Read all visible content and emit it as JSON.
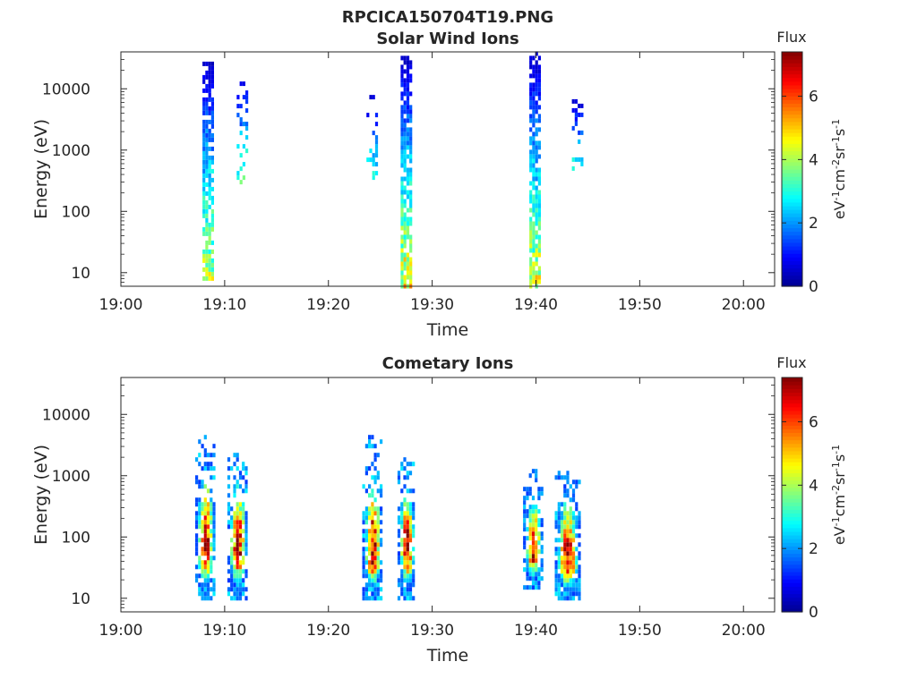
{
  "figure": {
    "title": "RPCICA150704T19.PNG"
  },
  "colormap": [
    "#00008f",
    "#0000ff",
    "#0080ff",
    "#00ffff",
    "#80ff80",
    "#ffff00",
    "#ff8000",
    "#ff0000",
    "#800000"
  ],
  "chart_data": [
    {
      "type": "heatmap",
      "title": "Solar Wind Ions",
      "xlabel": "Time",
      "ylabel": "Energy (eV)",
      "x_axis": {
        "range": [
          "19:00",
          "20:03"
        ],
        "ticks": [
          "19:00",
          "19:10",
          "19:20",
          "19:30",
          "19:40",
          "19:50",
          "20:00"
        ]
      },
      "y_axis": {
        "scale": "log",
        "range": [
          6,
          40000
        ],
        "tick_values": [
          10,
          100,
          1000,
          10000
        ],
        "ticks": [
          "10",
          "100",
          "1000",
          "10000"
        ]
      },
      "colorbar": {
        "title": "Flux",
        "label": "eV-1cm-2sr-1s-1",
        "range": [
          0,
          7.4
        ],
        "tick_values": [
          0,
          2,
          4,
          6
        ],
        "ticks": [
          "0",
          "2",
          "4",
          "6"
        ]
      },
      "grid": false,
      "bursts": [
        {
          "time": "19:08.5",
          "energy_min": 8,
          "energy_max": 30000,
          "density": 0.78,
          "peak": 3.9
        },
        {
          "time": "19:11.8",
          "energy_min": 300,
          "energy_max": 16000,
          "density": 0.3,
          "peak": 3.1
        },
        {
          "time": "19:24.3",
          "energy_min": 300,
          "energy_max": 8000,
          "density": 0.22,
          "peak": 2.8
        },
        {
          "time": "19:27.6",
          "energy_min": 6,
          "energy_max": 35000,
          "density": 0.8,
          "peak": 4.3
        },
        {
          "time": "19:40.0",
          "energy_min": 6,
          "energy_max": 38000,
          "density": 0.8,
          "peak": 4.1
        },
        {
          "time": "19:44.1",
          "energy_min": 500,
          "energy_max": 6500,
          "density": 0.3,
          "peak": 2.8
        }
      ]
    },
    {
      "type": "heatmap",
      "title": "Cometary Ions",
      "xlabel": "Time",
      "ylabel": "Energy (eV)",
      "x_axis": {
        "range": [
          "19:00",
          "20:03"
        ],
        "ticks": [
          "19:00",
          "19:10",
          "19:20",
          "19:30",
          "19:40",
          "19:50",
          "20:00"
        ]
      },
      "y_axis": {
        "scale": "log",
        "range": [
          6,
          40000
        ],
        "tick_values": [
          10,
          100,
          1000,
          10000
        ],
        "ticks": [
          "10",
          "100",
          "1000",
          "10000"
        ]
      },
      "colorbar": {
        "title": "Flux",
        "label": "eV-1cm-2sr-1s-1",
        "range": [
          0,
          7.4
        ],
        "tick_values": [
          0,
          2,
          4,
          6
        ],
        "ticks": [
          "0",
          "2",
          "4",
          "6"
        ]
      },
      "grid": false,
      "bursts": [
        {
          "time": "19:08.2",
          "energy_min": 10,
          "energy_max": 5000,
          "peak_energy": 60,
          "peak": 7.0,
          "width_min": 1.8
        },
        {
          "time": "19:11.3",
          "energy_min": 10,
          "energy_max": 2500,
          "peak_energy": 60,
          "peak": 7.2,
          "width_min": 1.8
        },
        {
          "time": "19:24.3",
          "energy_min": 10,
          "energy_max": 4500,
          "peak_energy": 50,
          "peak": 7.2,
          "width_min": 1.8
        },
        {
          "time": "19:27.6",
          "energy_min": 10,
          "energy_max": 2000,
          "peak_energy": 60,
          "peak": 7.3,
          "width_min": 1.6
        },
        {
          "time": "19:39.8",
          "energy_min": 15,
          "energy_max": 1300,
          "peak_energy": 55,
          "peak": 6.9,
          "width_min": 1.8
        },
        {
          "time": "19:43.1",
          "energy_min": 10,
          "energy_max": 1300,
          "peak_energy": 40,
          "peak": 7.3,
          "width_min": 2.3
        }
      ]
    }
  ]
}
